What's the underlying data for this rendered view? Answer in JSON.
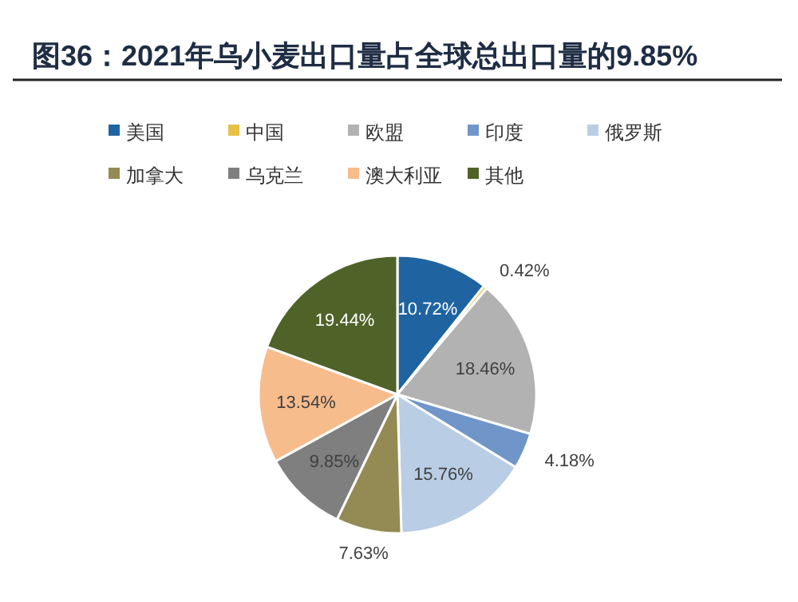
{
  "chart_data": {
    "type": "pie",
    "title": "图36：2021年乌小麦出口量占全球总出口量的9.85%",
    "categories": [
      "美国",
      "中国",
      "欧盟",
      "印度",
      "俄罗斯",
      "加拿大",
      "乌克兰",
      "澳大利亚",
      "其他"
    ],
    "values": [
      10.72,
      0.42,
      18.46,
      4.18,
      15.76,
      7.63,
      9.85,
      13.54,
      19.44
    ],
    "value_labels": [
      "10.72%",
      "0.42%",
      "18.46%",
      "4.18%",
      "15.76%",
      "7.63%",
      "9.85%",
      "13.54%",
      "19.44%"
    ],
    "colors": [
      "#1f64a0",
      "#e6c147",
      "#b2b2b2",
      "#7096c9",
      "#b9cde5",
      "#948a54",
      "#7f7f7f",
      "#f7bc8c",
      "#4f6228"
    ],
    "legend": "top"
  }
}
